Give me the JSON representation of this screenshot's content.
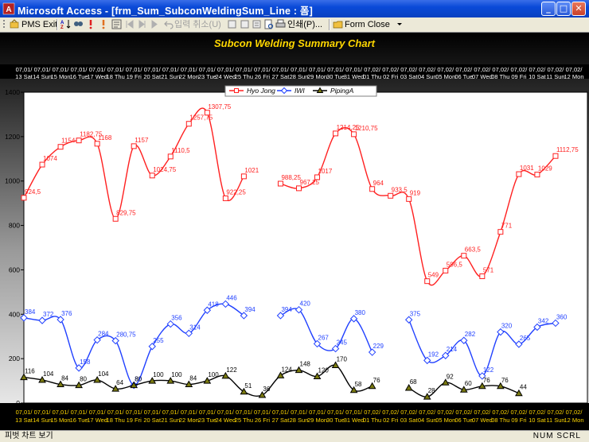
{
  "window": {
    "app_title": "Microsoft Access - [frm_Sum_SubconWeldingSum_Line : 폼]",
    "minimize": "_",
    "maximize": "□",
    "close": "✕"
  },
  "toolbar": {
    "pms_exit": "PMS Exit",
    "undo_input": "입력 취소(U)",
    "print": "인쇄(P)...",
    "form_close": "Form Close"
  },
  "colors": {
    "hyo_jong": "#ff2020",
    "iwi": "#2040ff",
    "piping_a": "#000000",
    "title": "#ffd700",
    "axis_text": "#ffffff",
    "bottom_axis_text": "#ffd700"
  },
  "chart_data": {
    "type": "line",
    "title": "Subcon Welding Summary Chart",
    "categories": [
      [
        "07,01/",
        "13 Sat"
      ],
      [
        "07,01/",
        "14 Sun"
      ],
      [
        "07,01/",
        "15 Mon"
      ],
      [
        "07,01/",
        "16 Tue"
      ],
      [
        "07,01/",
        "17 Wed"
      ],
      [
        "07,01/",
        "18 Thu"
      ],
      [
        "07,01/",
        "19 Fri"
      ],
      [
        "07,01/",
        "20 Sat"
      ],
      [
        "07,01/",
        "21 Sun"
      ],
      [
        "07,01/",
        "22 Mon"
      ],
      [
        "07,01/",
        "23 Tue"
      ],
      [
        "07,01/",
        "24 Wed"
      ],
      [
        "07,01/",
        "25 Thu"
      ],
      [
        "07,01/",
        "26 Fri"
      ],
      [
        "07,01/",
        "27 Sat"
      ],
      [
        "07,01/",
        "28 Sun"
      ],
      [
        "07,01/",
        "29 Mon"
      ],
      [
        "07,01/",
        "30 Tue"
      ],
      [
        "07,01/",
        "31 Wed"
      ],
      [
        "07,02/",
        "01 Thu"
      ],
      [
        "07,02/",
        "02 Fri"
      ],
      [
        "07,02/",
        "03 Sat"
      ],
      [
        "07,02/",
        "04 Sun"
      ],
      [
        "07,02/",
        "05 Mon"
      ],
      [
        "07,02/",
        "06 Tue"
      ],
      [
        "07,02/",
        "07 Wed"
      ],
      [
        "07,02/",
        "08 Thu"
      ],
      [
        "07,02/",
        "09 Fri"
      ],
      [
        "07,02/",
        "10 Sat"
      ],
      [
        "07,02/",
        "11 Sun"
      ],
      [
        "07,02/",
        "12 Mon"
      ]
    ],
    "series": [
      {
        "name": "Hyo Jong",
        "color": "#ff2020",
        "marker": "square",
        "values": [
          924.5,
          1074,
          1154,
          1182.75,
          1168,
          829.75,
          1157,
          1024.75,
          1110.5,
          1257.75,
          1307.75,
          922.25,
          1021,
          null,
          988.25,
          967.25,
          1017,
          1214.25,
          1210.75,
          964,
          933.5,
          919,
          549,
          596.5,
          663.5,
          571,
          771,
          1031,
          1029,
          1112.75,
          null
        ],
        "labels": [
          "924,5",
          "1074",
          "1154",
          "1182,75",
          "1168",
          "829,75",
          "1157",
          "1024,75",
          "1110,5",
          "1257,75",
          "1307,75",
          "922,25",
          "1021",
          null,
          "988,25",
          "967,25",
          "1017",
          "1214,25",
          "1210,75",
          "964",
          "933,5",
          "919",
          "549",
          "596,5",
          "663,5",
          "571",
          "771",
          "1031",
          "1029",
          "1112,75",
          null
        ]
      },
      {
        "name": "IWI",
        "color": "#2040ff",
        "marker": "diamond",
        "values": [
          384,
          372,
          376,
          158,
          284,
          280.75,
          80,
          255,
          356,
          314,
          418,
          446,
          394,
          null,
          394,
          420,
          267,
          245,
          380,
          229,
          null,
          375,
          192,
          214,
          282,
          122,
          320,
          265,
          342,
          360,
          null
        ],
        "labels": [
          "384",
          "372",
          "376",
          "158",
          "284",
          "280,75",
          "80",
          "255",
          "356",
          "314",
          "418",
          "446",
          "394",
          null,
          "394",
          "420",
          "267",
          "245",
          "380",
          "229",
          null,
          "375",
          "192",
          "214",
          "282",
          "122",
          "320",
          "265",
          "342",
          "360",
          null
        ]
      },
      {
        "name": "PipingA",
        "color": "#000000",
        "marker": "triangle",
        "values": [
          116,
          104,
          84,
          80,
          104,
          64,
          80,
          100,
          100,
          84,
          100,
          122,
          51,
          36,
          124,
          148,
          120,
          170,
          58,
          76,
          null,
          68,
          28,
          92,
          60,
          76,
          76,
          44,
          null,
          null,
          null
        ],
        "labels": [
          "116",
          "104",
          "84",
          "80",
          "104",
          "64",
          "80",
          "100",
          "100",
          "84",
          "100",
          "122",
          "51",
          "36",
          "124",
          "148",
          "120",
          "170",
          "58",
          "76",
          null,
          "68",
          "28",
          "92",
          "60",
          "76",
          "76",
          "44",
          null,
          null,
          null
        ]
      }
    ],
    "ylim": [
      0,
      1400
    ],
    "yticks": [
      0,
      200,
      400,
      600,
      800,
      1000,
      1200,
      1400
    ],
    "grid": false,
    "legend": "top-center"
  },
  "status": {
    "left": "피벗 차트 보기",
    "right": "NUM  SCRL"
  }
}
